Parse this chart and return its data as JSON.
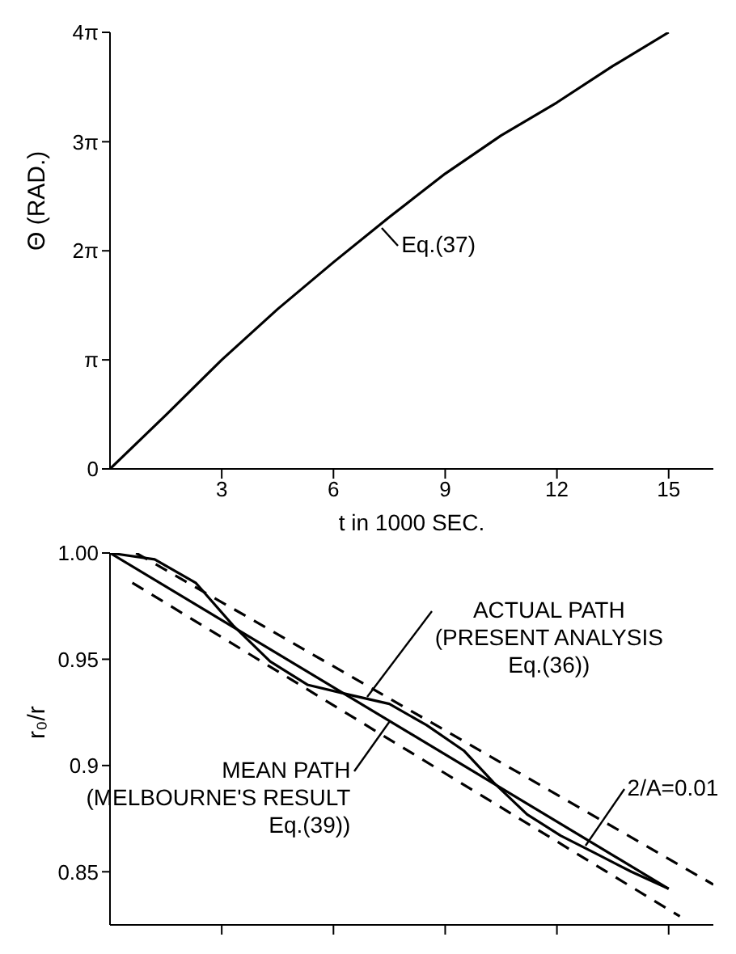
{
  "chart_data": [
    {
      "type": "line",
      "ylabel": "Θ (RAD.)",
      "xlabel": "t in 1000 SEC.",
      "xlim": [
        0,
        16.2
      ],
      "xticks": [
        3,
        6,
        9,
        12,
        15
      ],
      "ylim": [
        0,
        12.57
      ],
      "yticks": [
        {
          "value": 0,
          "label": "0"
        },
        {
          "value": 3.14,
          "label": "π"
        },
        {
          "value": 6.28,
          "label": "2π"
        },
        {
          "value": 9.42,
          "label": "3π"
        },
        {
          "value": 12.57,
          "label": "4π"
        }
      ],
      "series": [
        {
          "color": "#000000",
          "x": [
            0,
            1.5,
            3,
            4.5,
            6,
            7.5,
            9,
            10.5,
            12,
            13.5,
            15
          ],
          "values": [
            0,
            1.55,
            3.14,
            4.6,
            5.95,
            7.25,
            8.5,
            9.6,
            10.55,
            11.6,
            12.57
          ]
        }
      ],
      "annotations": [
        {
          "text": "Eq.(37)",
          "x": 7.3,
          "y": 6.94
        }
      ]
    },
    {
      "type": "line",
      "ylabel": "r₀/r",
      "tick_labels": "y",
      "xlim": [
        0,
        16.2
      ],
      "xticks": [
        3,
        6,
        9,
        12,
        15
      ],
      "ylim": [
        0.825,
        1.0
      ],
      "yticks": [
        0.85,
        0.9,
        0.95,
        {
          "value": 1.0,
          "label": "1.00"
        }
      ],
      "series": [
        {
          "color": "#000000",
          "x": [
            0,
            1.2,
            2.3,
            3.3,
            4.3,
            5.3,
            6.5,
            7.5,
            8.5,
            9.5,
            10.3,
            11.2,
            12.1,
            13.0,
            14.0,
            15.0
          ],
          "values": [
            1.0,
            0.997,
            0.986,
            0.966,
            0.949,
            0.938,
            0.933,
            0.929,
            0.919,
            0.907,
            0.892,
            0.877,
            0.867,
            0.859,
            0.85,
            0.842
          ]
        },
        {
          "color": "#000000",
          "x": [
            0,
            15
          ],
          "values": [
            1.0,
            0.842
          ]
        },
        {
          "color": "#000000",
          "line_style": "dashed",
          "x": [
            0.7,
            16.2
          ],
          "values": [
            1.0,
            0.844
          ]
        },
        {
          "color": "#000000",
          "line_style": "dashed",
          "x": [
            0.6,
            15.3
          ],
          "values": [
            0.986,
            0.829
          ]
        }
      ],
      "annotations": [
        {
          "text": "ACTUAL PATH\n(PRESENT ANALYSIS\nEq.(36))",
          "x": 6.9,
          "y": 0.932
        },
        {
          "text": "MEAN PATH\n(MELBOURNE'S RESULT\nEq.(39))",
          "x": 7.5,
          "y": 0.921
        },
        {
          "text": "2/A=0.01",
          "x": 12.76,
          "y": 0.862
        }
      ]
    }
  ]
}
